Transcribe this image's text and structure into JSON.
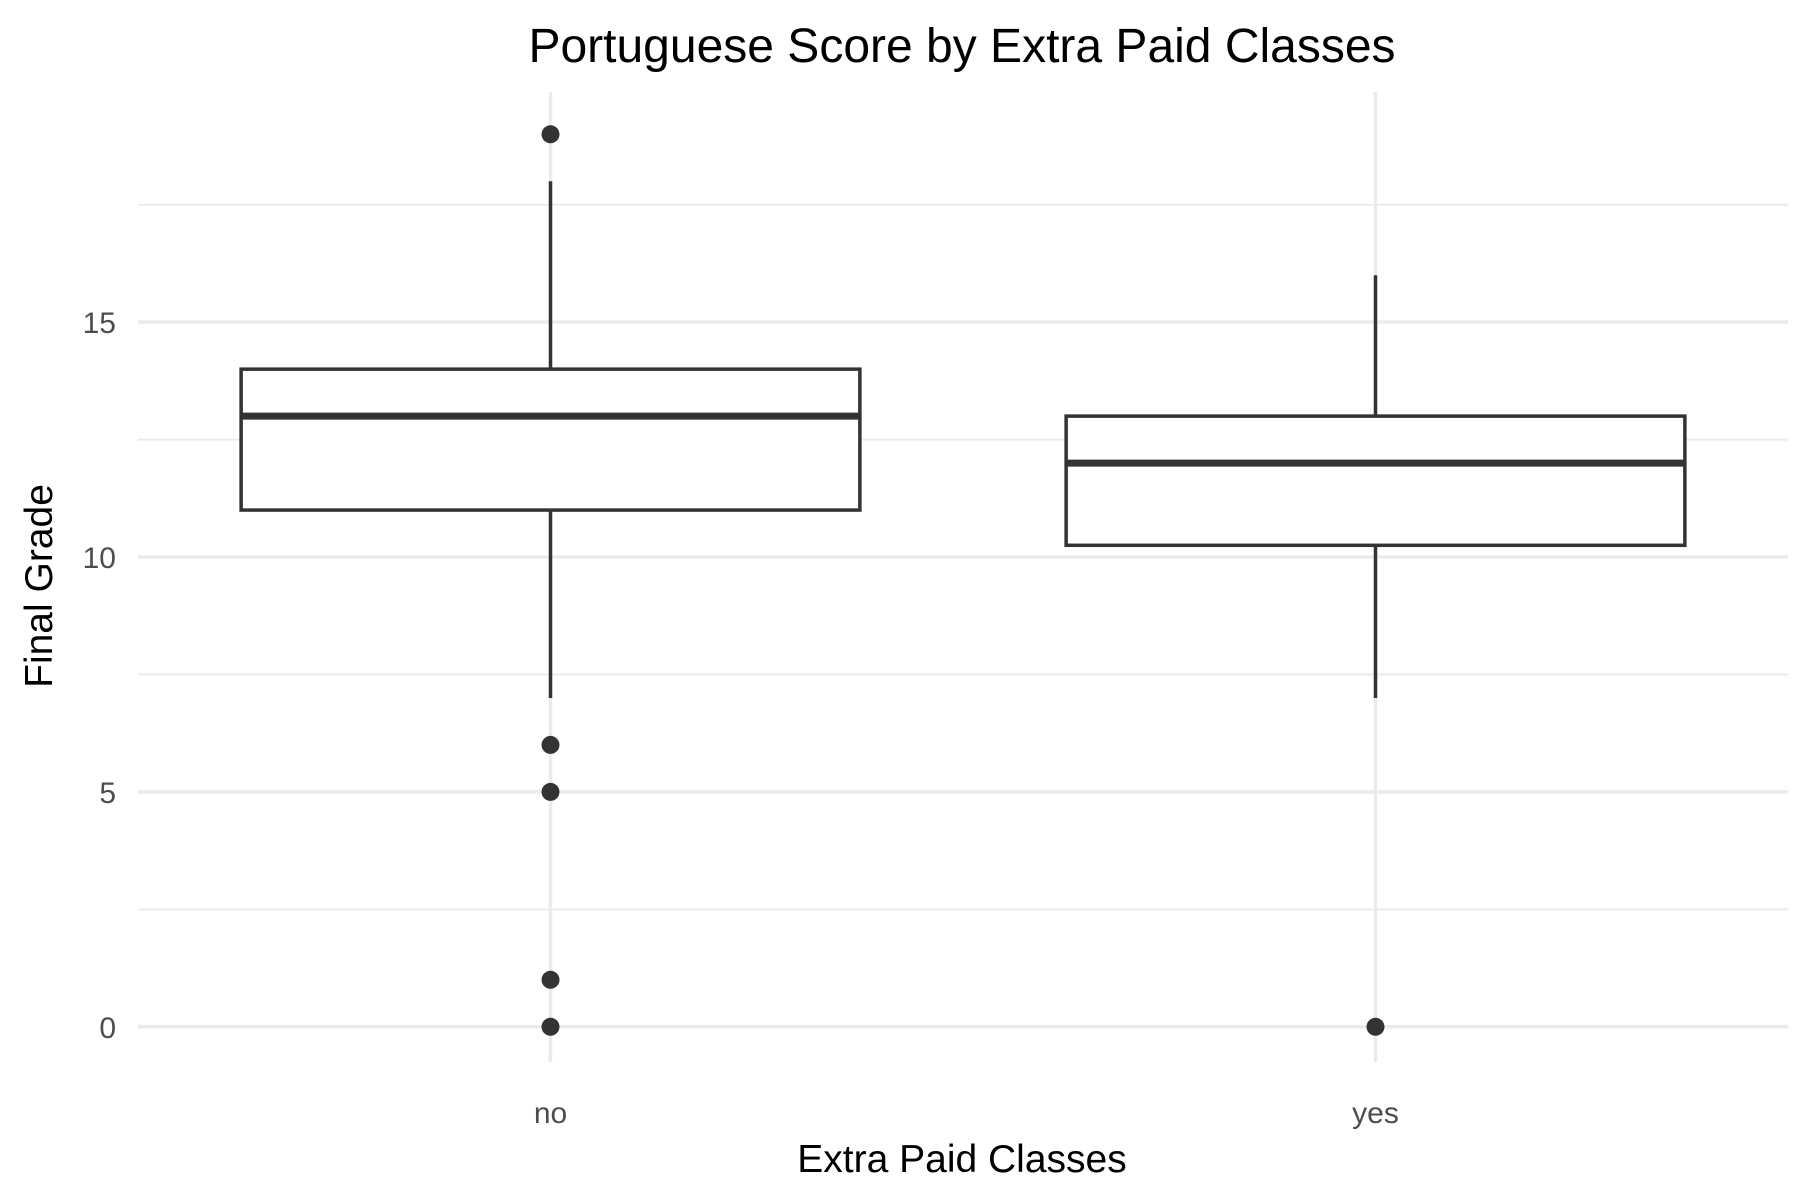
{
  "chart_data": {
    "type": "boxplot",
    "title": "Portuguese Score by Extra Paid Classes",
    "xlabel": "Extra Paid Classes",
    "ylabel": "Final Grade",
    "categories": [
      "no",
      "yes"
    ],
    "y_ticks": [
      0,
      5,
      10,
      15
    ],
    "ylim": [
      -0.75,
      19.9
    ],
    "grid": true,
    "legend": "none",
    "colors": {
      "stroke": "#333333",
      "fill": "#ffffff",
      "grid": "#ebebeb"
    },
    "boxes": [
      {
        "category": "no",
        "whisker_low": 7,
        "q1": 11,
        "median": 13,
        "q3": 14,
        "whisker_high": 18,
        "outliers": [
          19,
          6,
          5,
          1,
          0
        ]
      },
      {
        "category": "yes",
        "whisker_low": 7,
        "q1": 10.25,
        "median": 12,
        "q3": 13,
        "whisker_high": 16,
        "outliers": [
          0
        ]
      }
    ]
  }
}
